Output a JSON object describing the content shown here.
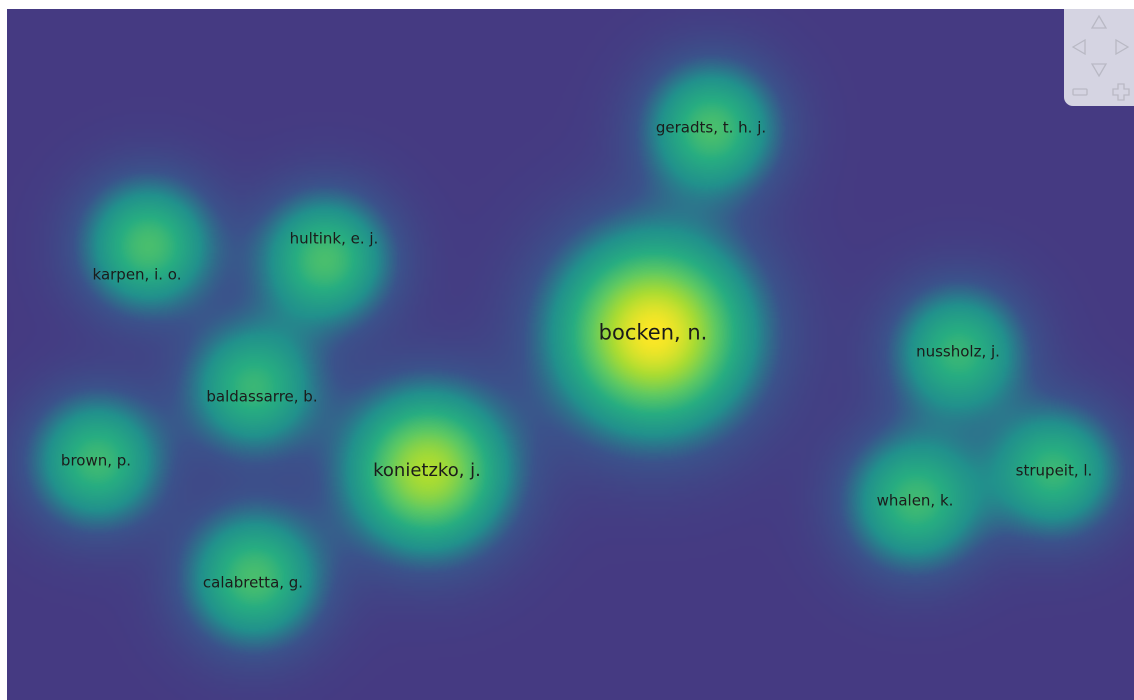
{
  "map": {
    "background_color": "#453a82",
    "colormap": [
      "#453a82",
      "#3b528b",
      "#21918c",
      "#27ad81",
      "#5ec962",
      "#aadc32",
      "#fde725"
    ],
    "nodes": [
      {
        "id": "bocken",
        "label": "bocken, n.",
        "weight": 1.0,
        "size": "big"
      },
      {
        "id": "konietzko",
        "label": "konietzko, j.",
        "weight": 0.82,
        "size": "mid"
      },
      {
        "id": "geradts",
        "label": "geradts, t. h. j.",
        "weight": 0.55,
        "size": "normal"
      },
      {
        "id": "hultink",
        "label": "hultink, e. j.",
        "weight": 0.55,
        "size": "normal"
      },
      {
        "id": "karpen",
        "label": "karpen, i. o.",
        "weight": 0.55,
        "size": "normal"
      },
      {
        "id": "baldassarre",
        "label": "baldassarre, b.",
        "weight": 0.5,
        "size": "normal"
      },
      {
        "id": "brown",
        "label": "brown, p.",
        "weight": 0.52,
        "size": "normal"
      },
      {
        "id": "calabretta",
        "label": "calabretta, g.",
        "weight": 0.55,
        "size": "normal"
      },
      {
        "id": "nussholz",
        "label": "nussholz, j.",
        "weight": 0.5,
        "size": "normal"
      },
      {
        "id": "whalen",
        "label": "whalen, k.",
        "weight": 0.52,
        "size": "normal"
      },
      {
        "id": "strupeit",
        "label": "strupeit, l.",
        "weight": 0.5,
        "size": "normal"
      }
    ]
  },
  "navigation": {
    "up_icon": "triangle-up-outline",
    "left_icon": "triangle-left-outline",
    "right_icon": "triangle-right-outline",
    "down_icon": "triangle-down-outline",
    "zoom_out_icon": "minus-outline",
    "zoom_in_icon": "plus-outline"
  }
}
